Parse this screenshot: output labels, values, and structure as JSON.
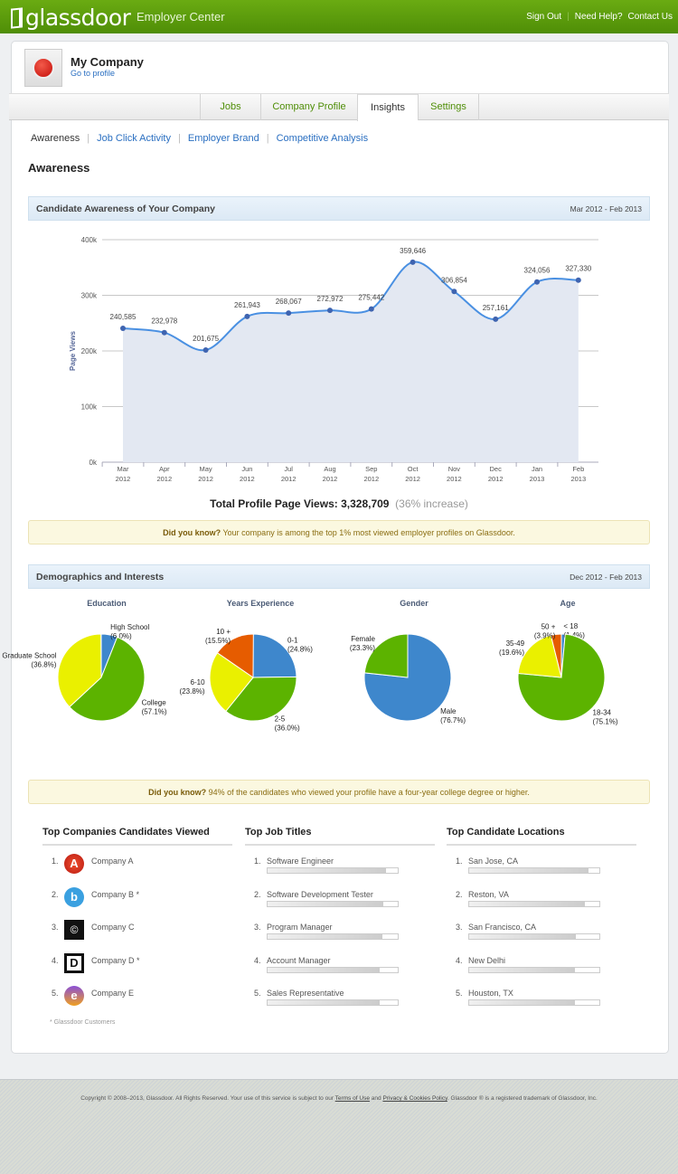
{
  "header": {
    "logo": "glassdoor",
    "subtitle": "Employer Center",
    "links": [
      "Sign Out",
      "Need Help?",
      "Contact Us"
    ],
    "brand_color": "#5c9e0b"
  },
  "company": {
    "name": "My Company",
    "profile_link": "Go to profile"
  },
  "tabs": [
    {
      "label": "Jobs"
    },
    {
      "label": "Company Profile"
    },
    {
      "label": "Insights",
      "active": true
    },
    {
      "label": "Settings"
    }
  ],
  "subnav": [
    {
      "label": "Awareness",
      "active": true
    },
    {
      "label": "Job Click Activity"
    },
    {
      "label": "Employer Brand"
    },
    {
      "label": "Competitive Analysis"
    }
  ],
  "page_title": "Awareness",
  "awareness": {
    "title": "Candidate Awareness of Your Company",
    "range": "Mar 2012 - Feb 2013",
    "total_label": "Total Profile Page Views:",
    "total_value": "3,328,709",
    "increase": "(36% increase)"
  },
  "tip1": {
    "bold": "Did you know?",
    "text": " Your company is among the top 1% most viewed employer profiles on Glassdoor."
  },
  "demographics": {
    "title": "Demographics and Interests",
    "range": "Dec 2012 - Feb 2013"
  },
  "tip2": {
    "bold": "Did you know?",
    "text": " 94% of the candidates who viewed your profile have a four-year college degree or higher."
  },
  "chart_data": [
    {
      "type": "area",
      "ylabel": "Page Views",
      "ylim": [
        0,
        400000
      ],
      "yticks": [
        "0k",
        "100k",
        "200k",
        "300k",
        "400k"
      ],
      "grid": true,
      "categories": [
        [
          "Mar",
          "2012"
        ],
        [
          "Apr",
          "2012"
        ],
        [
          "May",
          "2012"
        ],
        [
          "Jun",
          "2012"
        ],
        [
          "Jul",
          "2012"
        ],
        [
          "Aug",
          "2012"
        ],
        [
          "Sep",
          "2012"
        ],
        [
          "Oct",
          "2012"
        ],
        [
          "Nov",
          "2012"
        ],
        [
          "Dec",
          "2012"
        ],
        [
          "Jan",
          "2013"
        ],
        [
          "Feb",
          "2013"
        ]
      ],
      "values": [
        240585,
        232978,
        201675,
        261943,
        268067,
        272972,
        275442,
        359646,
        306854,
        257161,
        324056,
        327330
      ],
      "labels": [
        "240,585",
        "232,978",
        "201,675",
        "261,943",
        "268,067",
        "272,972",
        "275,442",
        "359,646",
        "306,854",
        "257,161",
        "324,056",
        "327,330"
      ],
      "line_color": "#4a90e2",
      "fill_color": "#e3e8f2"
    },
    {
      "type": "pie",
      "title": "Education",
      "slices": [
        {
          "label": "High School",
          "pct": 6.0,
          "color": "#3e87cc"
        },
        {
          "label": "College",
          "pct": 57.1,
          "color": "#5cb300"
        },
        {
          "label": "Graduate School",
          "pct": 36.8,
          "color": "#eaf000"
        }
      ]
    },
    {
      "type": "pie",
      "title": "Years Experience",
      "slices": [
        {
          "label": "0-1",
          "pct": 24.8,
          "color": "#3e87cc"
        },
        {
          "label": "2-5",
          "pct": 36.0,
          "color": "#5cb300"
        },
        {
          "label": "6-10",
          "pct": 23.8,
          "color": "#eaf000"
        },
        {
          "label": "10 +",
          "pct": 15.5,
          "color": "#e65c00"
        }
      ]
    },
    {
      "type": "pie",
      "title": "Gender",
      "slices": [
        {
          "label": "Male",
          "pct": 76.7,
          "color": "#3e87cc"
        },
        {
          "label": "Female",
          "pct": 23.3,
          "color": "#5cb300"
        }
      ]
    },
    {
      "type": "pie",
      "title": "Age",
      "slices": [
        {
          "label": "< 18",
          "pct": 1.4,
          "color": "#3e87cc"
        },
        {
          "label": "18-34",
          "pct": 75.1,
          "color": "#5cb300"
        },
        {
          "label": "35-49",
          "pct": 19.6,
          "color": "#eaf000"
        },
        {
          "label": "50 +",
          "pct": 3.9,
          "color": "#e65c00"
        }
      ]
    }
  ],
  "lists": {
    "companies": {
      "title": "Top Companies Candidates Viewed",
      "items": [
        {
          "name": "Company A"
        },
        {
          "name": "Company B *"
        },
        {
          "name": "Company C"
        },
        {
          "name": "Company D *"
        },
        {
          "name": "Company E"
        }
      ],
      "footnote": "* Glassdoor Customers"
    },
    "job_titles": {
      "title": "Top Job Titles",
      "items": [
        {
          "name": "Software Engineer",
          "share": 0.91
        },
        {
          "name": "Software Development Tester",
          "share": 0.89
        },
        {
          "name": "Program Manager",
          "share": 0.88
        },
        {
          "name": "Account Manager",
          "share": 0.86
        },
        {
          "name": "Sales Representative",
          "share": 0.86
        }
      ]
    },
    "locations": {
      "title": "Top Candidate Locations",
      "items": [
        {
          "name": "San Jose, CA",
          "share": 0.92
        },
        {
          "name": "Reston, VA",
          "share": 0.89
        },
        {
          "name": "San Francisco, CA",
          "share": 0.82
        },
        {
          "name": "New Delhi",
          "share": 0.81
        },
        {
          "name": "Houston, TX",
          "share": 0.81
        }
      ]
    }
  },
  "footer": {
    "pre": "Copyright © 2008–2013, Glassdoor. All Rights Reserved. Your use of this service is subject to our ",
    "terms": "Terms of Use",
    "and": " and ",
    "privacy": "Privacy & Cookies Policy",
    "post": ". Glassdoor ® is a registered trademark of Glassdoor, Inc."
  }
}
